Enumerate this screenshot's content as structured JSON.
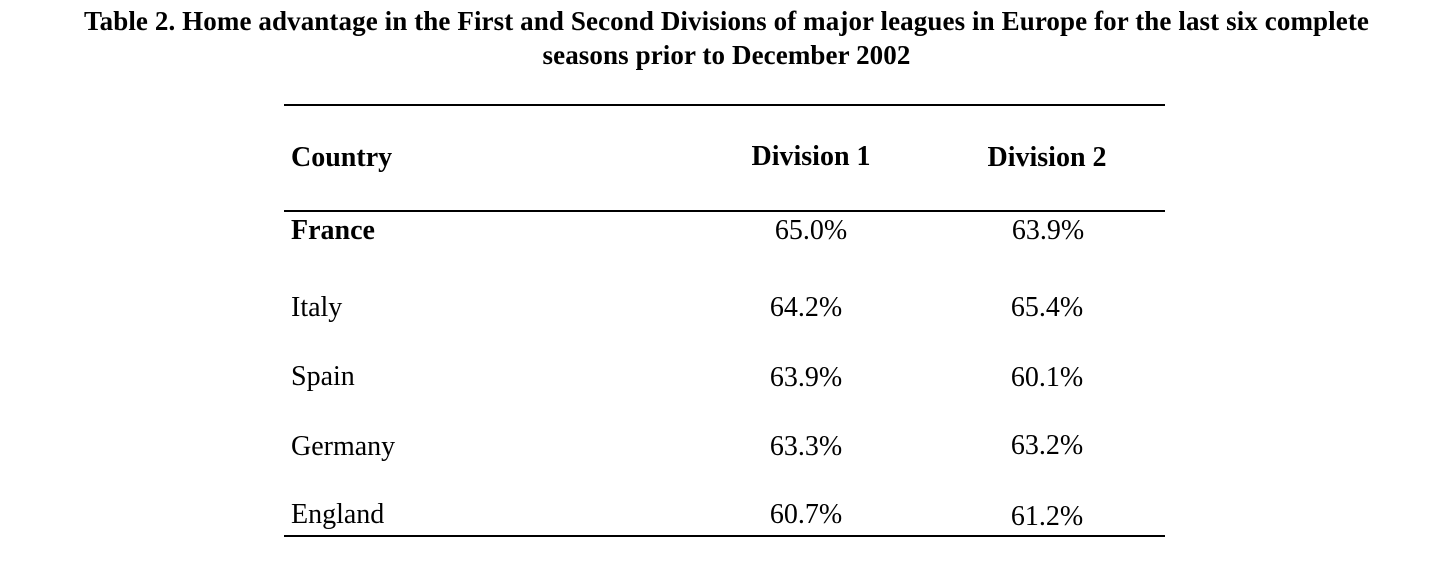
{
  "caption": {
    "line1": "Table 2.  Home advantage in the First and Second Divisions of major leagues in Europe for the last six complete",
    "line2": "seasons prior to December 2002"
  },
  "table": {
    "headers": [
      "Country",
      "Division 1",
      "Division 2"
    ],
    "rows": [
      {
        "country": "France",
        "div1": "65.0%",
        "div2": "63.9%"
      },
      {
        "country": "Italy",
        "div1": "64.2%",
        "div2": "65.4%"
      },
      {
        "country": "Spain",
        "div1": "63.9%",
        "div2": "60.1%"
      },
      {
        "country": "Germany",
        "div1": "63.3%",
        "div2": "63.2%"
      },
      {
        "country": "England",
        "div1": "60.7%",
        "div2": "61.2%"
      }
    ]
  }
}
